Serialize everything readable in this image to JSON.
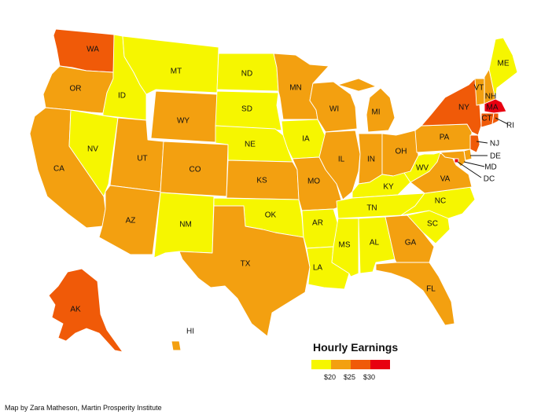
{
  "map": {
    "credit": "Map by Zara Matheson, Martin Prosperity Institute",
    "legend": {
      "title": "Hourly Earnings",
      "ticks": [
        "$20",
        "$25",
        "$30"
      ],
      "bins": [
        {
          "key": "b1",
          "color": "#f6f600"
        },
        {
          "key": "b2",
          "color": "#f3a010"
        },
        {
          "key": "b3",
          "color": "#f05a08"
        },
        {
          "key": "b4",
          "color": "#e80010"
        }
      ]
    },
    "states": {
      "WA": "b3",
      "OR": "b2",
      "CA": "b2",
      "ID": "b1",
      "NV": "b1",
      "MT": "b1",
      "WY": "b2",
      "UT": "b2",
      "AZ": "b2",
      "CO": "b2",
      "NM": "b1",
      "ND": "b1",
      "SD": "b1",
      "NE": "b1",
      "KS": "b2",
      "OK": "b1",
      "TX": "b2",
      "MN": "b2",
      "IA": "b1",
      "MO": "b2",
      "AR": "b1",
      "LA": "b1",
      "WI": "b2",
      "IL": "b2",
      "MI": "b2",
      "IN": "b2",
      "OH": "b2",
      "KY": "b1",
      "TN": "b1",
      "MS": "b1",
      "AL": "b1",
      "GA": "b2",
      "FL": "b2",
      "SC": "b1",
      "NC": "b1",
      "VA": "b2",
      "WV": "b1",
      "PA": "b2",
      "NY": "b3",
      "VT": "b2",
      "NH": "b2",
      "ME": "b1",
      "MA": "b4",
      "RI": "b3",
      "CT": "b3",
      "NJ": "b3",
      "DE": "b2",
      "MD": "b2",
      "DC": "b4",
      "AK": "b3",
      "HI": "b2"
    },
    "labels": [
      "WA",
      "OR",
      "CA",
      "ID",
      "NV",
      "MT",
      "WY",
      "UT",
      "AZ",
      "CO",
      "NM",
      "ND",
      "SD",
      "NE",
      "KS",
      "OK",
      "TX",
      "MN",
      "IA",
      "MO",
      "AR",
      "LA",
      "WI",
      "IL",
      "MI",
      "IN",
      "OH",
      "KY",
      "TN",
      "MS",
      "AL",
      "GA",
      "FL",
      "SC",
      "NC",
      "VA",
      "WV",
      "PA",
      "NY",
      "VT",
      "NH",
      "ME",
      "MA",
      "CT",
      "RI",
      "NJ",
      "DE",
      "MD",
      "DC",
      "AK",
      "HI"
    ]
  }
}
